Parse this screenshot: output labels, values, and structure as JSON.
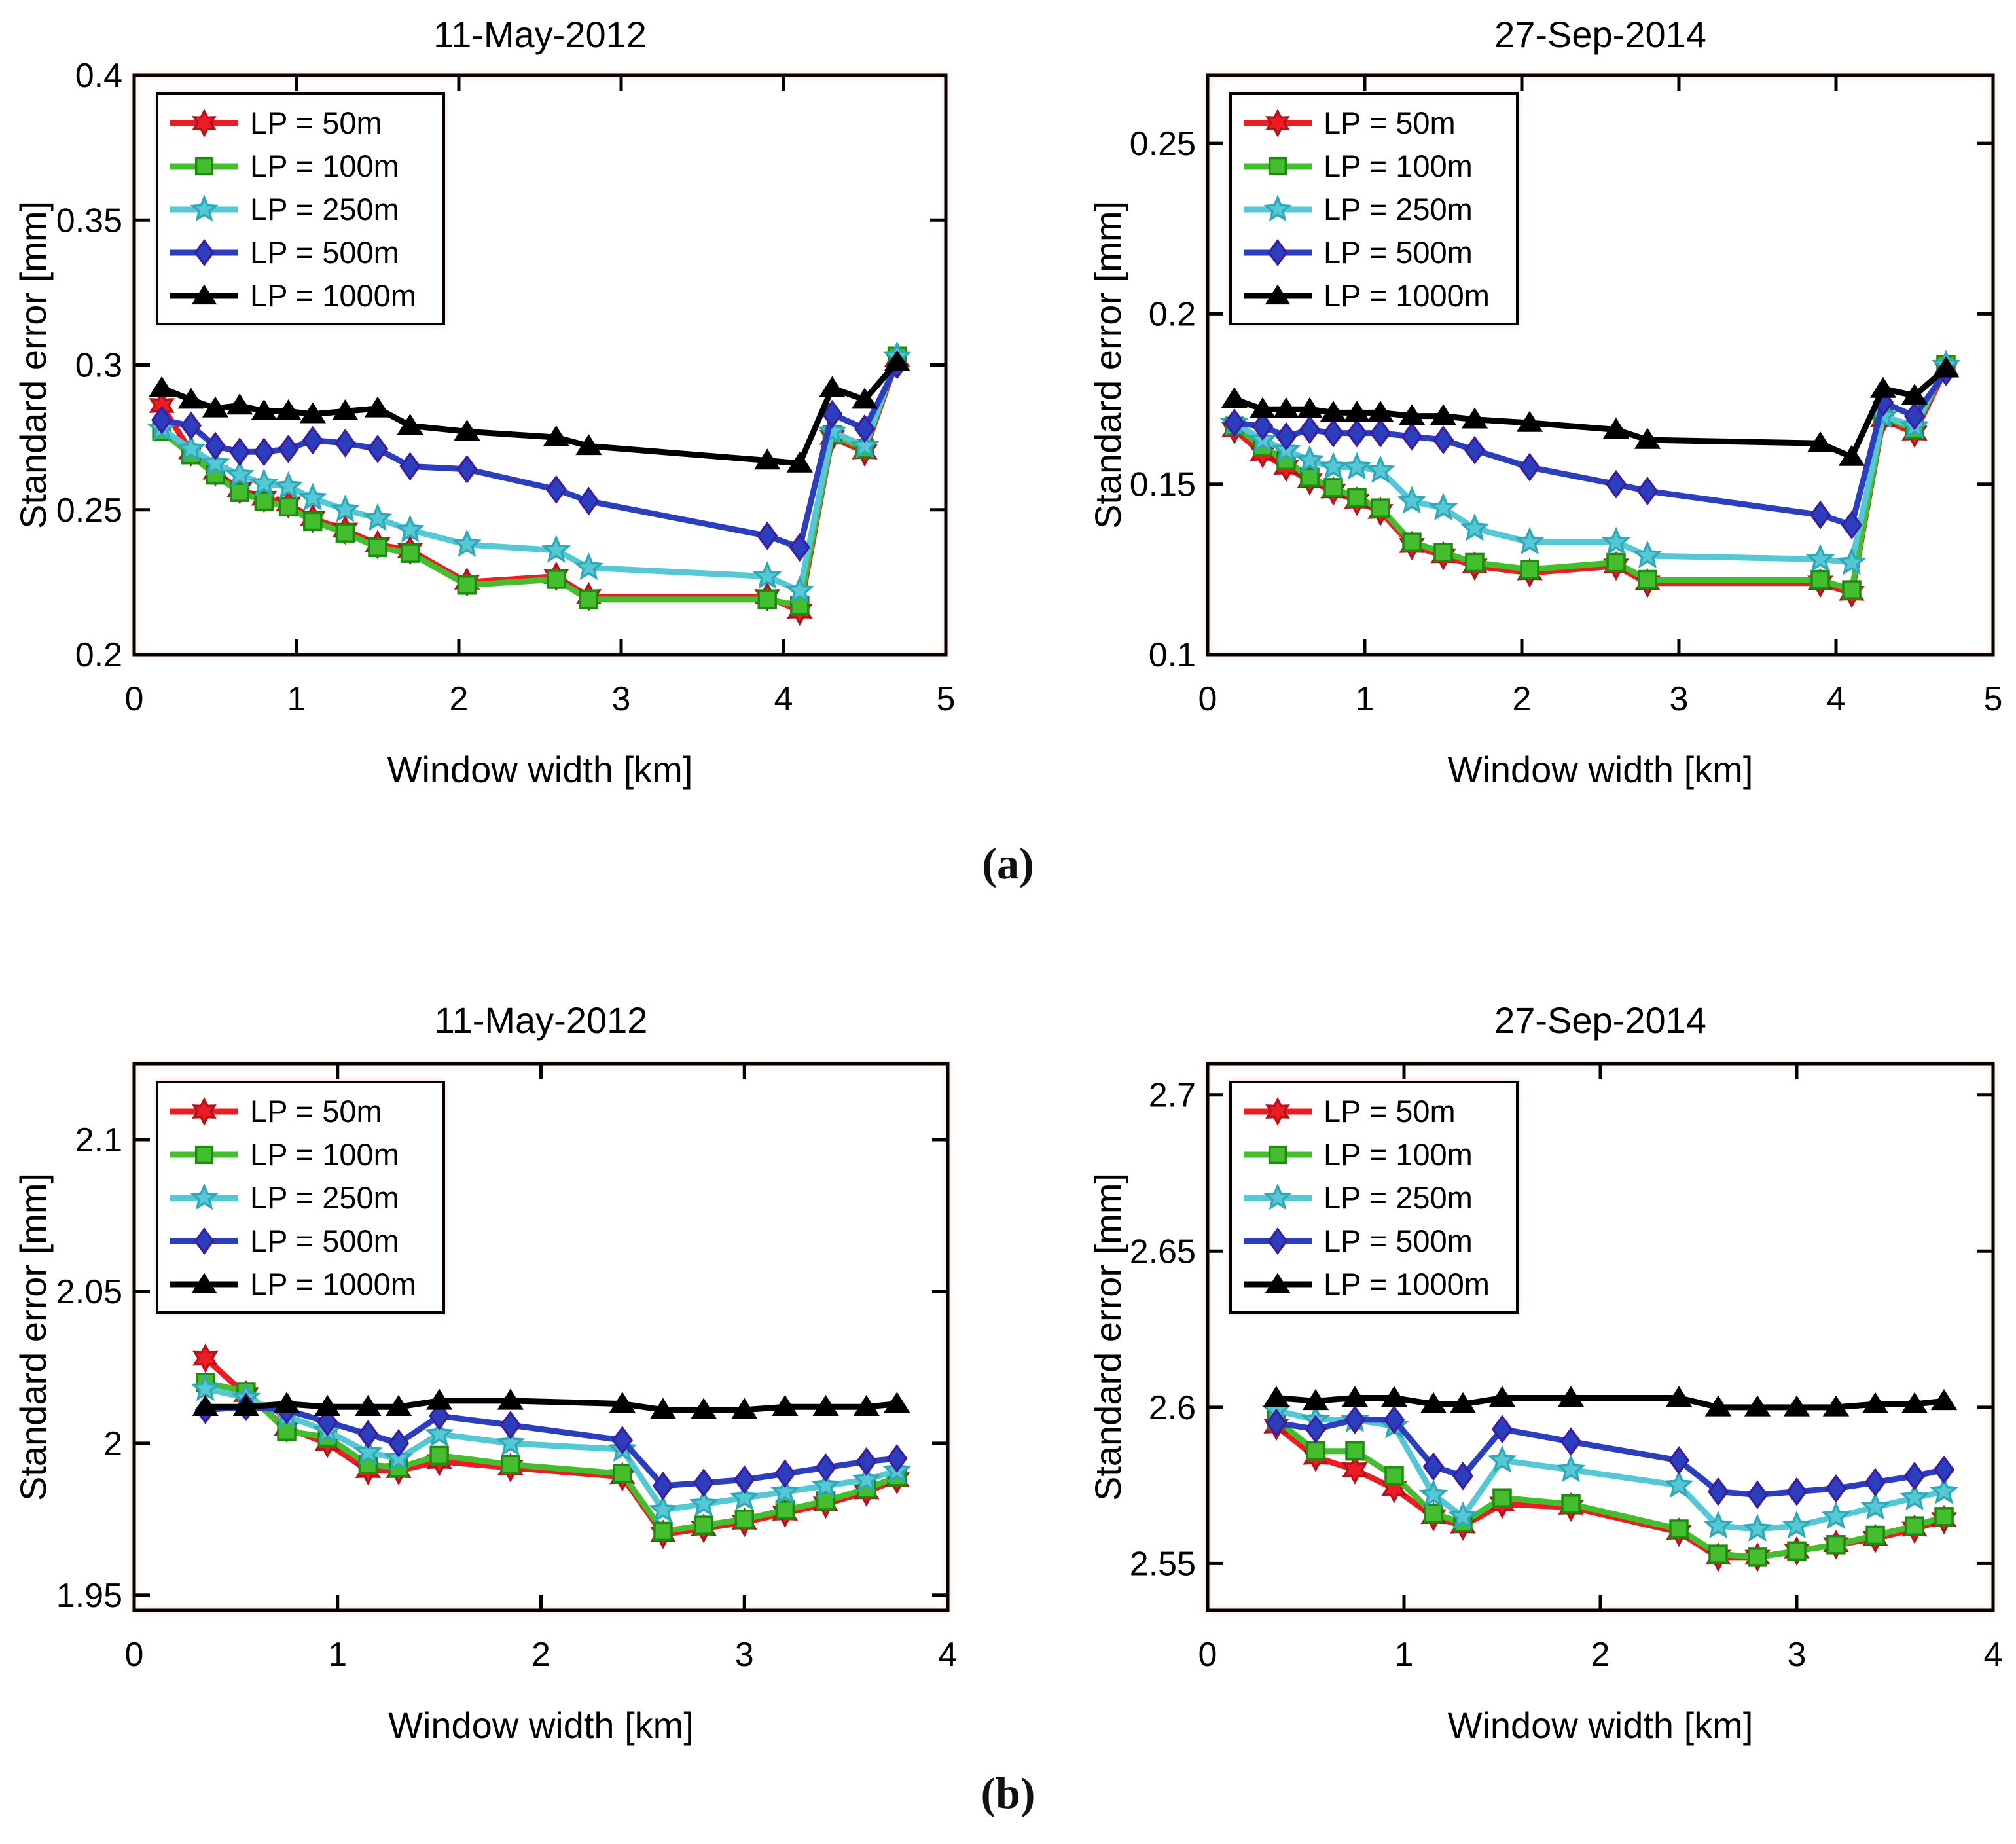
{
  "figure": {
    "background": "#ffffff",
    "axis_color": "#000000",
    "panel_labels": {
      "a": "(a)",
      "b": "(b)"
    },
    "series_styles": [
      {
        "name": "LP = 50m",
        "color": "#ED1C24",
        "edge": "#B5121A",
        "marker": "hexagram"
      },
      {
        "name": "LP = 100m",
        "color": "#44BE2E",
        "edge": "#1F8A10",
        "marker": "square"
      },
      {
        "name": "LP = 250m",
        "color": "#55C8D5",
        "edge": "#2FA8B8",
        "marker": "star"
      },
      {
        "name": "LP = 500m",
        "color": "#2B3FBE",
        "edge": "#3A1FA0",
        "marker": "diamond"
      },
      {
        "name": "LP = 1000m",
        "color": "#000000",
        "edge": "#000000",
        "marker": "triangle"
      }
    ]
  },
  "chart_data": [
    {
      "id": "top-left",
      "type": "line",
      "panel": "a",
      "title": "11-May-2012",
      "xlabel": "Window width [km]",
      "ylabel": "Standard error [mm]",
      "xlim": [
        0,
        5
      ],
      "ylim": [
        0.2,
        0.4
      ],
      "xticks": [
        "0",
        "1",
        "2",
        "3",
        "4",
        "5"
      ],
      "yticks": [
        "0.2",
        "0.25",
        "0.3",
        "0.35",
        "0.4"
      ],
      "grid": false,
      "legend_position": "top-left",
      "x": [
        0.17,
        0.35,
        0.5,
        0.65,
        0.8,
        0.95,
        1.1,
        1.3,
        1.5,
        1.7,
        2.05,
        2.6,
        2.8,
        3.9,
        4.1,
        4.3,
        4.5,
        4.7
      ],
      "series": [
        {
          "name": "LP = 50m",
          "values": [
            0.286,
            0.27,
            0.263,
            0.257,
            0.254,
            0.252,
            0.247,
            0.243,
            0.238,
            0.236,
            0.225,
            0.227,
            0.22,
            0.22,
            0.215,
            0.275,
            0.27,
            0.302
          ]
        },
        {
          "name": "LP = 100m",
          "values": [
            0.277,
            0.269,
            0.262,
            0.256,
            0.253,
            0.251,
            0.246,
            0.242,
            0.237,
            0.235,
            0.224,
            0.226,
            0.219,
            0.219,
            0.217,
            0.276,
            0.271,
            0.303
          ]
        },
        {
          "name": "LP = 250m",
          "values": [
            0.278,
            0.271,
            0.266,
            0.262,
            0.259,
            0.258,
            0.254,
            0.25,
            0.247,
            0.243,
            0.238,
            0.236,
            0.23,
            0.227,
            0.222,
            0.277,
            0.272,
            0.303
          ]
        },
        {
          "name": "LP = 500m",
          "values": [
            0.281,
            0.279,
            0.272,
            0.27,
            0.27,
            0.271,
            0.274,
            0.273,
            0.271,
            0.265,
            0.264,
            0.257,
            0.253,
            0.241,
            0.237,
            0.283,
            0.278,
            0.3
          ]
        },
        {
          "name": "LP = 1000m",
          "values": [
            0.292,
            0.288,
            0.285,
            0.286,
            0.284,
            0.284,
            0.283,
            0.284,
            0.285,
            0.279,
            0.277,
            0.275,
            0.272,
            0.267,
            0.266,
            0.292,
            0.288,
            0.301
          ]
        }
      ]
    },
    {
      "id": "top-right",
      "type": "line",
      "panel": "a",
      "title": "27-Sep-2014",
      "xlabel": "Window width [km]",
      "ylabel": "Standard error [mm]",
      "xlim": [
        0,
        5
      ],
      "ylim": [
        0.1,
        0.27
      ],
      "xticks": [
        "0",
        "1",
        "2",
        "3",
        "4",
        "5"
      ],
      "yticks": [
        "0.1",
        "0.15",
        "0.2",
        "0.25"
      ],
      "grid": false,
      "legend_position": "top-left",
      "x": [
        0.17,
        0.35,
        0.5,
        0.65,
        0.8,
        0.95,
        1.1,
        1.3,
        1.5,
        1.7,
        2.05,
        2.6,
        2.8,
        3.9,
        4.1,
        4.3,
        4.5,
        4.7
      ],
      "series": [
        {
          "name": "LP = 50m",
          "values": [
            0.166,
            0.159,
            0.155,
            0.151,
            0.148,
            0.145,
            0.142,
            0.132,
            0.129,
            0.126,
            0.124,
            0.126,
            0.121,
            0.121,
            0.118,
            0.169,
            0.165,
            0.184
          ]
        },
        {
          "name": "LP = 100m",
          "values": [
            0.167,
            0.161,
            0.157,
            0.152,
            0.149,
            0.146,
            0.143,
            0.133,
            0.13,
            0.127,
            0.125,
            0.127,
            0.122,
            0.122,
            0.119,
            0.17,
            0.166,
            0.185
          ]
        },
        {
          "name": "LP = 250m",
          "values": [
            0.168,
            0.163,
            0.16,
            0.157,
            0.155,
            0.155,
            0.154,
            0.145,
            0.143,
            0.137,
            0.133,
            0.133,
            0.129,
            0.128,
            0.127,
            0.17,
            0.167,
            0.185
          ]
        },
        {
          "name": "LP = 500m",
          "values": [
            0.168,
            0.167,
            0.164,
            0.166,
            0.165,
            0.165,
            0.165,
            0.164,
            0.163,
            0.16,
            0.155,
            0.15,
            0.148,
            0.141,
            0.138,
            0.174,
            0.17,
            0.183
          ]
        },
        {
          "name": "LP = 1000m",
          "values": [
            0.175,
            0.172,
            0.172,
            0.172,
            0.171,
            0.171,
            0.171,
            0.17,
            0.17,
            0.169,
            0.168,
            0.166,
            0.163,
            0.162,
            0.158,
            0.178,
            0.176,
            0.184
          ]
        }
      ]
    },
    {
      "id": "bottom-left",
      "type": "line",
      "panel": "b",
      "title": "11-May-2012",
      "xlabel": "Window width [km]",
      "ylabel": "Standard error [mm]",
      "xlim": [
        0,
        4
      ],
      "ylim": [
        1.945,
        2.125
      ],
      "xticks": [
        "0",
        "1",
        "2",
        "3",
        "4"
      ],
      "yticks": [
        "1.95",
        "2",
        "2.05",
        "2.1"
      ],
      "grid": false,
      "legend_position": "top-left",
      "x": [
        0.35,
        0.55,
        0.75,
        0.95,
        1.15,
        1.3,
        1.5,
        1.85,
        2.4,
        2.6,
        2.8,
        3.0,
        3.2,
        3.4,
        3.6,
        3.75
      ],
      "series": [
        {
          "name": "LP = 50m",
          "values": [
            2.028,
            2.016,
            2.005,
            2.0,
            1.991,
            1.991,
            1.994,
            1.992,
            1.989,
            1.97,
            1.972,
            1.974,
            1.977,
            1.98,
            1.984,
            1.988
          ]
        },
        {
          "name": "LP = 100m",
          "values": [
            2.02,
            2.017,
            2.004,
            2.002,
            1.993,
            1.992,
            1.996,
            1.993,
            1.99,
            1.971,
            1.973,
            1.975,
            1.978,
            1.981,
            1.985,
            1.989
          ]
        },
        {
          "name": "LP = 250m",
          "values": [
            2.018,
            2.015,
            2.009,
            2.004,
            1.997,
            1.995,
            2.003,
            2.0,
            1.998,
            1.978,
            1.98,
            1.982,
            1.984,
            1.986,
            1.988,
            1.991
          ]
        },
        {
          "name": "LP = 500m",
          "values": [
            2.011,
            2.012,
            2.011,
            2.007,
            2.003,
            2.0,
            2.009,
            2.006,
            2.001,
            1.986,
            1.987,
            1.988,
            1.99,
            1.992,
            1.994,
            1.995
          ]
        },
        {
          "name": "LP = 1000m",
          "values": [
            2.012,
            2.012,
            2.013,
            2.012,
            2.012,
            2.012,
            2.014,
            2.014,
            2.013,
            2.011,
            2.011,
            2.011,
            2.012,
            2.012,
            2.012,
            2.013
          ]
        }
      ]
    },
    {
      "id": "bottom-right",
      "type": "line",
      "panel": "b",
      "title": "27-Sep-2014",
      "xlabel": "Window width [km]",
      "ylabel": "Standard error [mm]",
      "xlim": [
        0,
        4
      ],
      "ylim": [
        2.535,
        2.71
      ],
      "xticks": [
        "0",
        "1",
        "2",
        "3",
        "4"
      ],
      "yticks": [
        "2.55",
        "2.6",
        "2.65",
        "2.7"
      ],
      "grid": false,
      "legend_position": "top-left",
      "x": [
        0.35,
        0.55,
        0.75,
        0.95,
        1.15,
        1.3,
        1.5,
        1.85,
        2.4,
        2.6,
        2.8,
        3.0,
        3.2,
        3.4,
        3.6,
        3.75
      ],
      "series": [
        {
          "name": "LP = 50m",
          "values": [
            2.594,
            2.584,
            2.58,
            2.574,
            2.565,
            2.562,
            2.569,
            2.568,
            2.56,
            2.552,
            2.552,
            2.554,
            2.556,
            2.558,
            2.561,
            2.564
          ]
        },
        {
          "name": "LP = 100m",
          "values": [
            2.596,
            2.586,
            2.586,
            2.578,
            2.566,
            2.563,
            2.571,
            2.569,
            2.561,
            2.553,
            2.552,
            2.554,
            2.556,
            2.559,
            2.562,
            2.565
          ]
        },
        {
          "name": "LP = 250m",
          "values": [
            2.599,
            2.596,
            2.596,
            2.594,
            2.572,
            2.565,
            2.583,
            2.58,
            2.575,
            2.562,
            2.561,
            2.562,
            2.565,
            2.568,
            2.571,
            2.573
          ]
        },
        {
          "name": "LP = 500m",
          "values": [
            2.595,
            2.593,
            2.596,
            2.596,
            2.581,
            2.578,
            2.593,
            2.589,
            2.583,
            2.573,
            2.572,
            2.573,
            2.574,
            2.576,
            2.578,
            2.58
          ]
        },
        {
          "name": "LP = 1000m",
          "values": [
            2.603,
            2.602,
            2.603,
            2.603,
            2.601,
            2.601,
            2.603,
            2.603,
            2.603,
            2.6,
            2.6,
            2.6,
            2.6,
            2.601,
            2.601,
            2.602
          ]
        }
      ]
    }
  ]
}
